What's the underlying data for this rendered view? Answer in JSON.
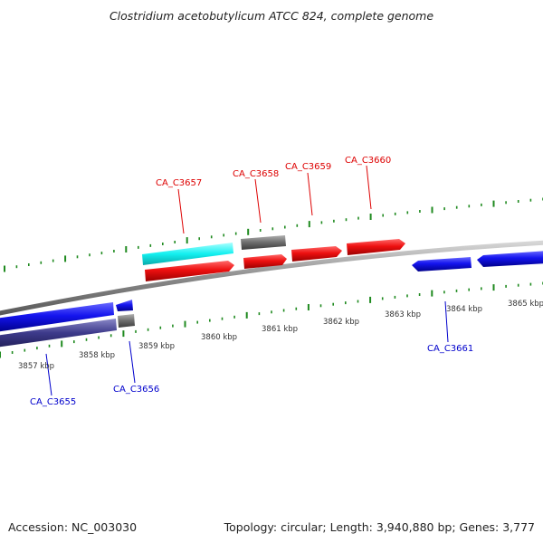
{
  "title": "Clostridium acetobutylicum ATCC 824, complete genome",
  "footer": {
    "accession": "Accession: NC_003030",
    "info": "Topology: circular; Length: 3,940,880 bp; Genes: 3,777"
  },
  "colors": {
    "forward_gene": "#e8141a",
    "reverse_gene": "#1a1af0",
    "rna_gene": "#6e6e6e",
    "forward_track_gene": "#13f4f0",
    "reverse_track_gene": "#3d3a8a",
    "backbone": "#8f8f8f",
    "ticks": "#1f8a1f",
    "top_label": "#dd0000",
    "bottom_label": "#0000cc"
  },
  "genes_top": [
    {
      "id": "CA_C3657",
      "color": "forward_gene"
    },
    {
      "id": "CA_C3658",
      "color": "forward_gene"
    },
    {
      "id": "CA_C3659",
      "color": "forward_gene"
    },
    {
      "id": "CA_C3660",
      "color": "forward_gene"
    }
  ],
  "genes_bottom": [
    {
      "id": "CA_C3655",
      "color": "reverse_gene"
    },
    {
      "id": "CA_C3656",
      "color": "reverse_gene"
    },
    {
      "id": "CA_C3661",
      "color": "reverse_gene"
    }
  ],
  "scale_labels": [
    "3857 kbp",
    "3858 kbp",
    "3859 kbp",
    "3860 kbp",
    "3861 kbp",
    "3862 kbp",
    "3863 kbp",
    "3864 kbp",
    "3865 kbp"
  ]
}
